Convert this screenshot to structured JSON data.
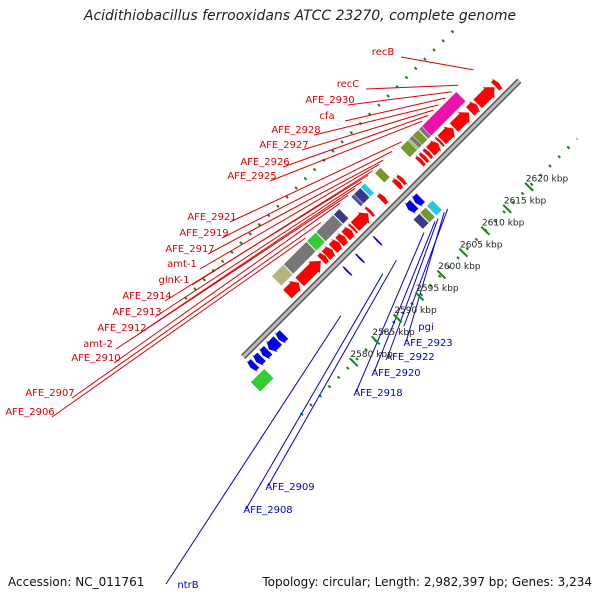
{
  "title": "Acidithiobacillus ferrooxidans ATCC 23270, complete genome",
  "footer": {
    "accession": "Accession: NC_011761",
    "topology": "Topology: circular; Length: 2,982,397 bp; Genes: 3,234"
  },
  "colors": {
    "backbone": "#888888",
    "forward_label": "#dd0000",
    "reverse_label": "#0000cc",
    "tick": "#118811",
    "forward_cds": "#ff0000",
    "reverse_cds": "#0000ee",
    "hit_magenta": "#ee11aa",
    "hit_gray": "#777777",
    "hit_green": "#33cc33",
    "hit_olive": "#77992a",
    "hit_navy": "#3a3a88",
    "hit_cyan": "#22ccdd",
    "hit_khaki": "#b5b57a",
    "hit_darkblue": "#4b4ba8"
  },
  "scale_labels": [
    "2580 kbp",
    "2585 kbp",
    "2590 kbp",
    "2595 kbp",
    "2600 kbp",
    "2605 kbp",
    "2610 kbp",
    "2615 kbp",
    "2620 kbp"
  ],
  "forward_genes": [
    "recB",
    "recC",
    "AFE_2930",
    "cfa",
    "AFE_2928",
    "AFE_2927",
    "AFE_2926",
    "AFE_2925",
    "AFE_2921",
    "AFE_2919",
    "AFE_2917",
    "amt-1",
    "glnK-1",
    "AFE_2914",
    "AFE_2913",
    "AFE_2912",
    "amt-2",
    "AFE_2910",
    "AFE_2907",
    "AFE_2906"
  ],
  "reverse_genes": [
    "pgi",
    "AFE_2923",
    "AFE_2922",
    "AFE_2920",
    "AFE_2918",
    "AFE_2909",
    "AFE_2908",
    "ntrB"
  ]
}
